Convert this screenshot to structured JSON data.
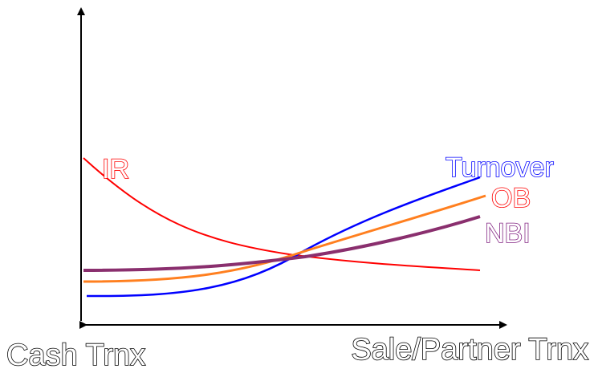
{
  "labels": {
    "x_left": "Cash Trnx",
    "x_right": "Sale/Partner Trnx"
  },
  "curves": [
    {
      "id": "ir",
      "label": "IR",
      "color": "#ff0000"
    },
    {
      "id": "turnover",
      "label": "Turnover",
      "color": "#0000ff"
    },
    {
      "id": "ob",
      "label": "OB",
      "color": "#ff0000"
    },
    {
      "id": "nbi",
      "label": "NBI",
      "color": "#7f1f7f"
    }
  ]
}
